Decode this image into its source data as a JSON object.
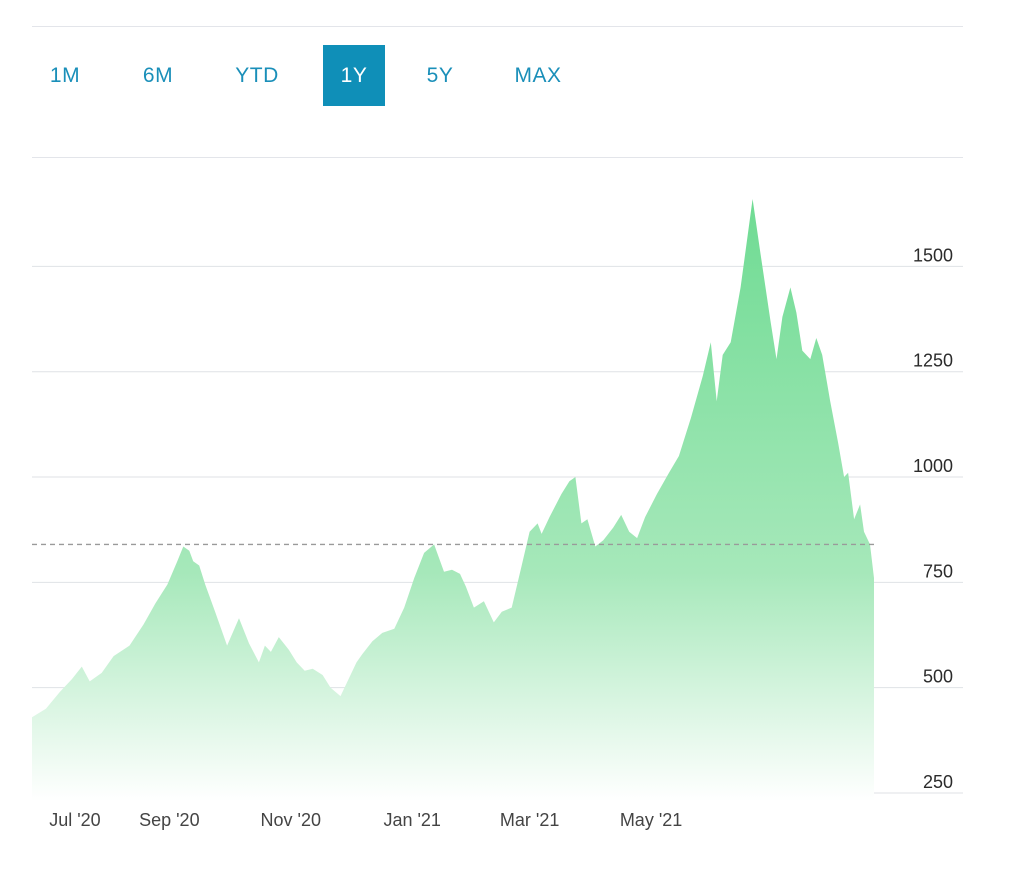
{
  "range_tabs": {
    "items": [
      {
        "label": "1M"
      },
      {
        "label": "6M"
      },
      {
        "label": "YTD"
      },
      {
        "label": "1Y"
      },
      {
        "label": "5Y"
      },
      {
        "label": "MAX"
      }
    ],
    "selected": "1Y"
  },
  "colors": {
    "accent": "#0f8fb8",
    "tab_text": "#1a8fb9",
    "area_fill_top": "#6fdb93",
    "area_fill_bottom": "#ffffff",
    "gridline": "#dfe2e6",
    "reference_line": "#9a9a9a"
  },
  "chart_data": {
    "type": "area",
    "title": "",
    "xlabel": "",
    "ylabel": "",
    "ylim": [
      250,
      1700
    ],
    "y_axis_position": "right",
    "yticks": [
      250,
      500,
      750,
      1000,
      1250,
      1500
    ],
    "x_tick_labels": [
      "Jul '20",
      "Sep '20",
      "Nov '20",
      "Jan '21",
      "Mar '21",
      "May '21"
    ],
    "x_tick_dates": [
      "2020-07-01",
      "2020-09-01",
      "2020-11-01",
      "2021-01-01",
      "2021-03-01",
      "2021-05-01"
    ],
    "grid": true,
    "reference_line_value": 840,
    "series": [
      {
        "points": [
          [
            "2020-06-24",
            430
          ],
          [
            "2020-07-01",
            450
          ],
          [
            "2020-07-08",
            490
          ],
          [
            "2020-07-14",
            520
          ],
          [
            "2020-07-19",
            550
          ],
          [
            "2020-07-23",
            515
          ],
          [
            "2020-07-29",
            535
          ],
          [
            "2020-08-04",
            575
          ],
          [
            "2020-08-12",
            600
          ],
          [
            "2020-08-19",
            650
          ],
          [
            "2020-08-25",
            700
          ],
          [
            "2020-08-31",
            745
          ],
          [
            "2020-09-05",
            800
          ],
          [
            "2020-09-08",
            835
          ],
          [
            "2020-09-11",
            825
          ],
          [
            "2020-09-13",
            800
          ],
          [
            "2020-09-16",
            790
          ],
          [
            "2020-09-19",
            745
          ],
          [
            "2020-09-24",
            680
          ],
          [
            "2020-09-30",
            600
          ],
          [
            "2020-10-06",
            665
          ],
          [
            "2020-10-11",
            605
          ],
          [
            "2020-10-16",
            560
          ],
          [
            "2020-10-19",
            600
          ],
          [
            "2020-10-22",
            585
          ],
          [
            "2020-10-26",
            620
          ],
          [
            "2020-10-31",
            590
          ],
          [
            "2020-11-04",
            560
          ],
          [
            "2020-11-08",
            540
          ],
          [
            "2020-11-12",
            545
          ],
          [
            "2020-11-17",
            530
          ],
          [
            "2020-11-21",
            500
          ],
          [
            "2020-11-26",
            480
          ],
          [
            "2020-11-30",
            520
          ],
          [
            "2020-12-04",
            560
          ],
          [
            "2020-12-07",
            580
          ],
          [
            "2020-12-12",
            610
          ],
          [
            "2020-12-17",
            630
          ],
          [
            "2020-12-23",
            640
          ],
          [
            "2020-12-28",
            690
          ],
          [
            "2021-01-02",
            760
          ],
          [
            "2021-01-07",
            820
          ],
          [
            "2021-01-12",
            840
          ],
          [
            "2021-01-17",
            775
          ],
          [
            "2021-01-21",
            780
          ],
          [
            "2021-01-25",
            770
          ],
          [
            "2021-01-28",
            740
          ],
          [
            "2021-02-01",
            690
          ],
          [
            "2021-02-06",
            705
          ],
          [
            "2021-02-11",
            655
          ],
          [
            "2021-02-15",
            680
          ],
          [
            "2021-02-20",
            690
          ],
          [
            "2021-02-25",
            790
          ],
          [
            "2021-03-01",
            870
          ],
          [
            "2021-03-05",
            890
          ],
          [
            "2021-03-07",
            865
          ],
          [
            "2021-03-11",
            905
          ],
          [
            "2021-03-17",
            960
          ],
          [
            "2021-03-21",
            990
          ],
          [
            "2021-03-24",
            1000
          ],
          [
            "2021-03-27",
            890
          ],
          [
            "2021-03-30",
            900
          ],
          [
            "2021-04-03",
            835
          ],
          [
            "2021-04-07",
            850
          ],
          [
            "2021-04-12",
            880
          ],
          [
            "2021-04-16",
            910
          ],
          [
            "2021-04-20",
            870
          ],
          [
            "2021-04-24",
            855
          ],
          [
            "2021-04-28",
            905
          ],
          [
            "2021-05-04",
            960
          ],
          [
            "2021-05-10",
            1010
          ],
          [
            "2021-05-15",
            1050
          ],
          [
            "2021-05-21",
            1140
          ],
          [
            "2021-05-27",
            1240
          ],
          [
            "2021-05-31",
            1320
          ],
          [
            "2021-06-03",
            1180
          ],
          [
            "2021-06-06",
            1290
          ],
          [
            "2021-06-10",
            1320
          ],
          [
            "2021-06-15",
            1450
          ],
          [
            "2021-06-21",
            1660
          ],
          [
            "2021-06-25",
            1530
          ],
          [
            "2021-06-30",
            1370
          ],
          [
            "2021-07-03",
            1280
          ],
          [
            "2021-07-06",
            1380
          ],
          [
            "2021-07-10",
            1450
          ],
          [
            "2021-07-13",
            1390
          ],
          [
            "2021-07-16",
            1300
          ],
          [
            "2021-07-20",
            1280
          ],
          [
            "2021-07-23",
            1330
          ],
          [
            "2021-07-26",
            1290
          ],
          [
            "2021-07-30",
            1180
          ],
          [
            "2021-08-03",
            1080
          ],
          [
            "2021-08-06",
            1000
          ],
          [
            "2021-08-08",
            1010
          ],
          [
            "2021-08-11",
            900
          ],
          [
            "2021-08-14",
            935
          ],
          [
            "2021-08-16",
            870
          ],
          [
            "2021-08-19",
            840
          ],
          [
            "2021-08-21",
            760
          ]
        ]
      }
    ]
  }
}
